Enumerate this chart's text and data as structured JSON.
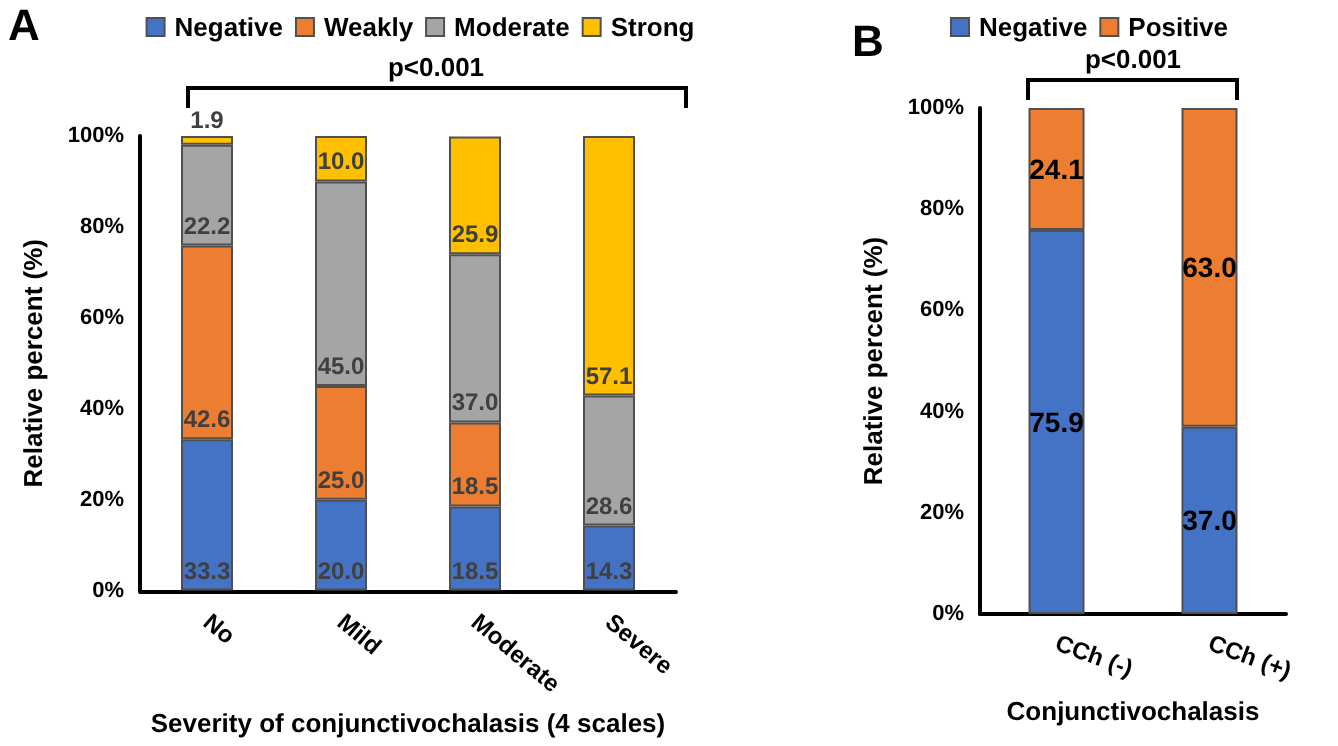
{
  "chart_data": [
    {
      "type": "bar",
      "title": "A",
      "xlabel": "Severity of conjunctivochalasis (4 scales)",
      "ylabel": "Relative percent (%)",
      "categories": [
        "No",
        "Mild",
        "Moderate",
        "Severe"
      ],
      "stacked": true,
      "legend": "top",
      "ylim": [
        0,
        100
      ],
      "yticks": [
        {
          "value": 0,
          "label": "0%"
        },
        {
          "value": 20,
          "label": "20%"
        },
        {
          "value": 40,
          "label": "40%"
        },
        {
          "value": 60,
          "label": "60%"
        },
        {
          "value": 80,
          "label": "80%"
        },
        {
          "value": 100,
          "label": "100%"
        }
      ],
      "annotations": [
        "p<0.001"
      ],
      "series": [
        {
          "name": "Negative",
          "color": "#4472c4",
          "values": [
            33.3,
            20.0,
            18.5,
            14.3
          ],
          "value_labels": [
            "33.3",
            "20.0",
            "18.5",
            "14.3"
          ]
        },
        {
          "name": "Weakly",
          "color": "#ed7d31",
          "values": [
            42.6,
            25.0,
            18.5,
            null
          ],
          "value_labels": [
            "42.6",
            "25.0",
            "18.5",
            null
          ]
        },
        {
          "name": "Moderate",
          "color": "#a5a5a5",
          "values": [
            22.2,
            45.0,
            37.0,
            28.6
          ],
          "value_labels": [
            "22.2",
            "45.0",
            "37.0",
            "28.6"
          ]
        },
        {
          "name": "Strong",
          "color": "#ffc000",
          "values": [
            1.9,
            10.0,
            25.9,
            57.1
          ],
          "value_labels": [
            "1.9",
            "10.0",
            "25.9",
            "57.1"
          ]
        }
      ]
    },
    {
      "type": "bar",
      "title": "B",
      "xlabel": "Conjunctivochalasis",
      "ylabel": "Relative percent (%)",
      "categories": [
        "CCh (-)",
        "CCh (+)"
      ],
      "stacked": true,
      "legend": "top",
      "ylim": [
        0,
        100
      ],
      "yticks": [
        {
          "value": 0,
          "label": "0%"
        },
        {
          "value": 20,
          "label": "20%"
        },
        {
          "value": 40,
          "label": "40%"
        },
        {
          "value": 60,
          "label": "60%"
        },
        {
          "value": 80,
          "label": "80%"
        },
        {
          "value": 100,
          "label": "100%"
        }
      ],
      "annotations": [
        "p<0.001"
      ],
      "series": [
        {
          "name": "Negative",
          "color": "#4472c4",
          "values": [
            75.9,
            37.0
          ],
          "value_labels": [
            "75.9",
            "37.0"
          ]
        },
        {
          "name": "Positive",
          "color": "#ed7d31",
          "values": [
            24.1,
            63.0
          ],
          "value_labels": [
            "24.1",
            "63.0"
          ]
        }
      ]
    }
  ]
}
